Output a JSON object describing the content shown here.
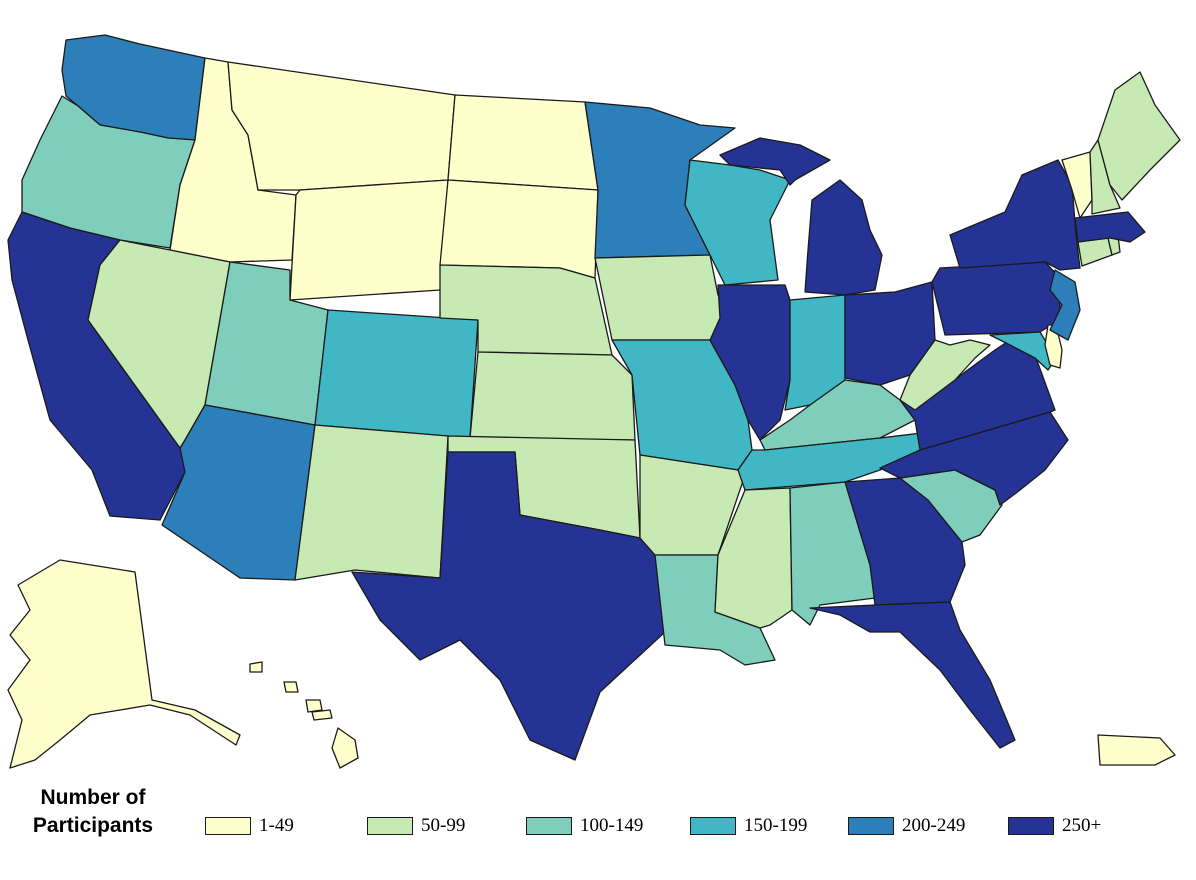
{
  "legend": {
    "title": "Number of Participants",
    "bins": [
      {
        "label": "1-49",
        "color": "#ffffcc"
      },
      {
        "label": "50-99",
        "color": "#c7e9b4"
      },
      {
        "label": "100-149",
        "color": "#7fcdbb"
      },
      {
        "label": "150-199",
        "color": "#41b6c4"
      },
      {
        "label": "200-249",
        "color": "#2c7fb8"
      },
      {
        "label": "250+",
        "color": "#253494"
      }
    ]
  },
  "states": {
    "AK": 0,
    "HI": 0,
    "PR": 0,
    "WA": 4,
    "OR": 2,
    "CA": 5,
    "ID": 0,
    "NV": 1,
    "MT": 0,
    "WY": 0,
    "UT": 2,
    "AZ": 4,
    "CO": 3,
    "NM": 1,
    "ND": 0,
    "SD": 0,
    "NE": 1,
    "KS": 1,
    "OK": 1,
    "TX": 5,
    "MN": 4,
    "IA": 1,
    "MO": 3,
    "AR": 1,
    "LA": 2,
    "WI": 3,
    "IL": 5,
    "MI": 5,
    "IN": 3,
    "OH": 5,
    "KY": 2,
    "TN": 3,
    "MS": 1,
    "AL": 2,
    "GA": 5,
    "FL": 5,
    "SC": 2,
    "NC": 5,
    "VA": 5,
    "WV": 1,
    "MD": 3,
    "DE": 0,
    "NJ": 4,
    "PA": 5,
    "NY": 5,
    "CT": 1,
    "RI": 1,
    "MA": 5,
    "VT": 0,
    "NH": 1,
    "ME": 1
  }
}
